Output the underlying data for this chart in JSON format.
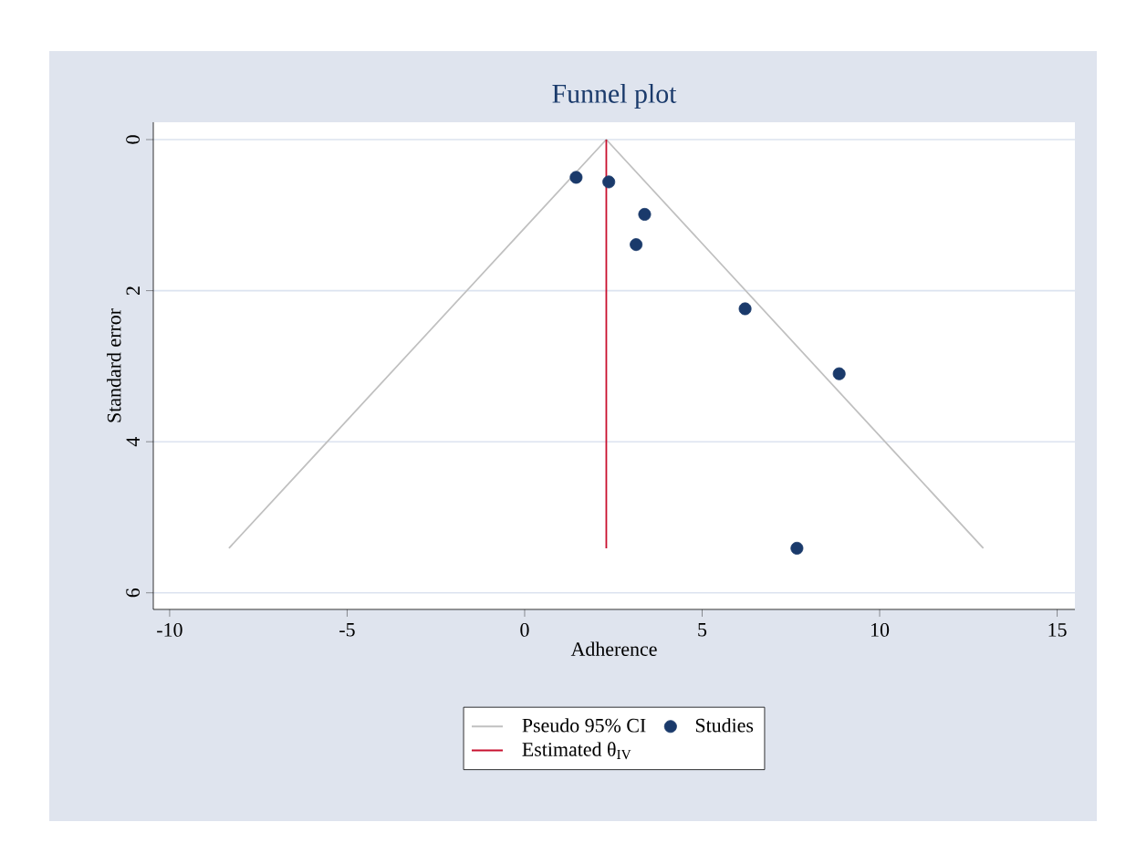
{
  "chart_data": {
    "type": "scatter",
    "title": "Funnel plot",
    "xlabel": "Adherence",
    "ylabel": "Standard error",
    "xlim": [
      -10.46,
      15.5
    ],
    "xticks": [
      -10,
      -5,
      0,
      5,
      10,
      15
    ],
    "ylim": [
      6.22,
      -0.23
    ],
    "yticks": [
      0,
      2,
      4,
      6
    ],
    "grid": "y",
    "legend": "bottom",
    "series": [
      {
        "name": "Pseudo 95% CI",
        "type": "line",
        "color": "#c0c0c0",
        "x": [
          -8.33,
          2.3,
          12.92
        ],
        "values": [
          5.41,
          0,
          5.41
        ],
        "marker": "none"
      },
      {
        "name": "Studies",
        "color": "#1a3a6b",
        "x": [
          1.45,
          2.37,
          3.38,
          3.14,
          6.21,
          8.86,
          7.67
        ],
        "values": [
          0.5,
          0.56,
          0.99,
          1.39,
          2.24,
          3.1,
          5.41
        ],
        "marker": "circle"
      },
      {
        "name": "Estimated θ$_{IV}$",
        "type": "line",
        "color": "#c8102e",
        "x": [
          2.3,
          2.3
        ],
        "values": [
          0,
          5.41
        ],
        "marker": "none"
      }
    ]
  }
}
